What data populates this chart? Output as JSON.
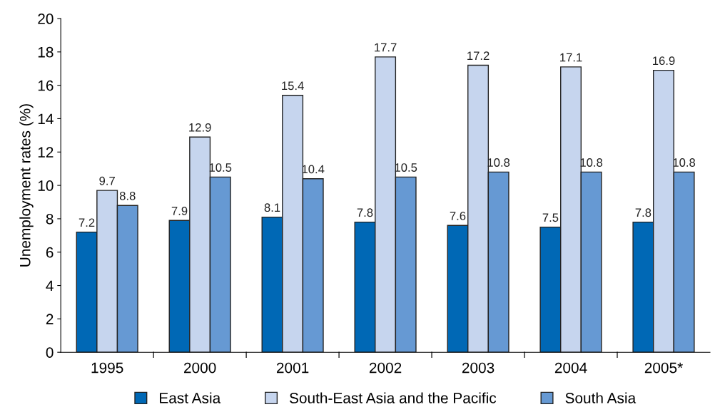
{
  "chart_data": {
    "type": "bar",
    "ylabel": "Unemployment rates (%)",
    "categories": [
      "1995",
      "2000",
      "2001",
      "2002",
      "2003",
      "2004",
      "2005*"
    ],
    "series": [
      {
        "name": "East Asia",
        "color": "#0068b5",
        "values": [
          7.2,
          7.9,
          8.1,
          7.8,
          7.6,
          7.5,
          7.8
        ]
      },
      {
        "name": "South-East Asia and the Pacific",
        "color": "#c6d5ee",
        "values": [
          9.7,
          12.9,
          15.4,
          17.7,
          17.2,
          17.1,
          16.9
        ]
      },
      {
        "name": "South Asia",
        "color": "#6699d3",
        "values": [
          8.8,
          10.5,
          10.4,
          10.5,
          10.8,
          10.8,
          10.8
        ]
      }
    ],
    "ylim": [
      0,
      20
    ],
    "yticks": [
      0,
      2,
      4,
      6,
      8,
      10,
      12,
      14,
      16,
      18,
      20
    ],
    "data_labels": true,
    "grid": false,
    "legend": "bottom"
  }
}
